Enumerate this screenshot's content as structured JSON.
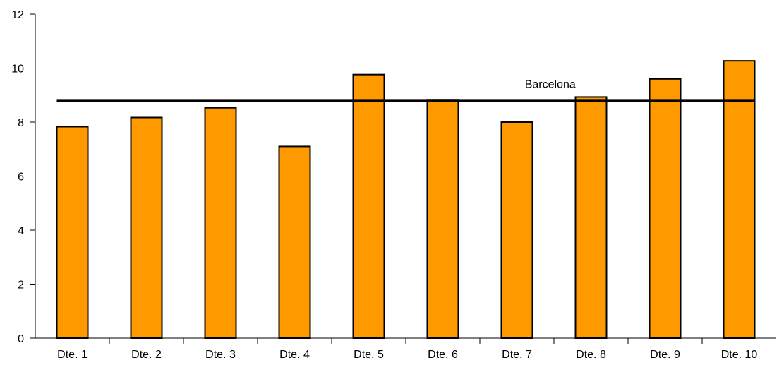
{
  "chart_data": {
    "type": "bar",
    "categories": [
      "Dte. 1",
      "Dte. 2",
      "Dte. 3",
      "Dte. 4",
      "Dte. 5",
      "Dte. 6",
      "Dte. 7",
      "Dte. 8",
      "Dte. 9",
      "Dte. 10"
    ],
    "values": [
      7.83,
      8.17,
      8.53,
      7.1,
      9.76,
      8.83,
      8.0,
      8.93,
      9.6,
      10.27
    ],
    "ylim": [
      0,
      12
    ],
    "yticks": [
      "0",
      "2",
      "4",
      "6",
      "8",
      "10",
      "12"
    ],
    "bar_color": "#ff9900",
    "reference_line": {
      "label": "Barcelona",
      "value": 8.8,
      "color": "#000000"
    },
    "grid": false,
    "legend": "none"
  }
}
